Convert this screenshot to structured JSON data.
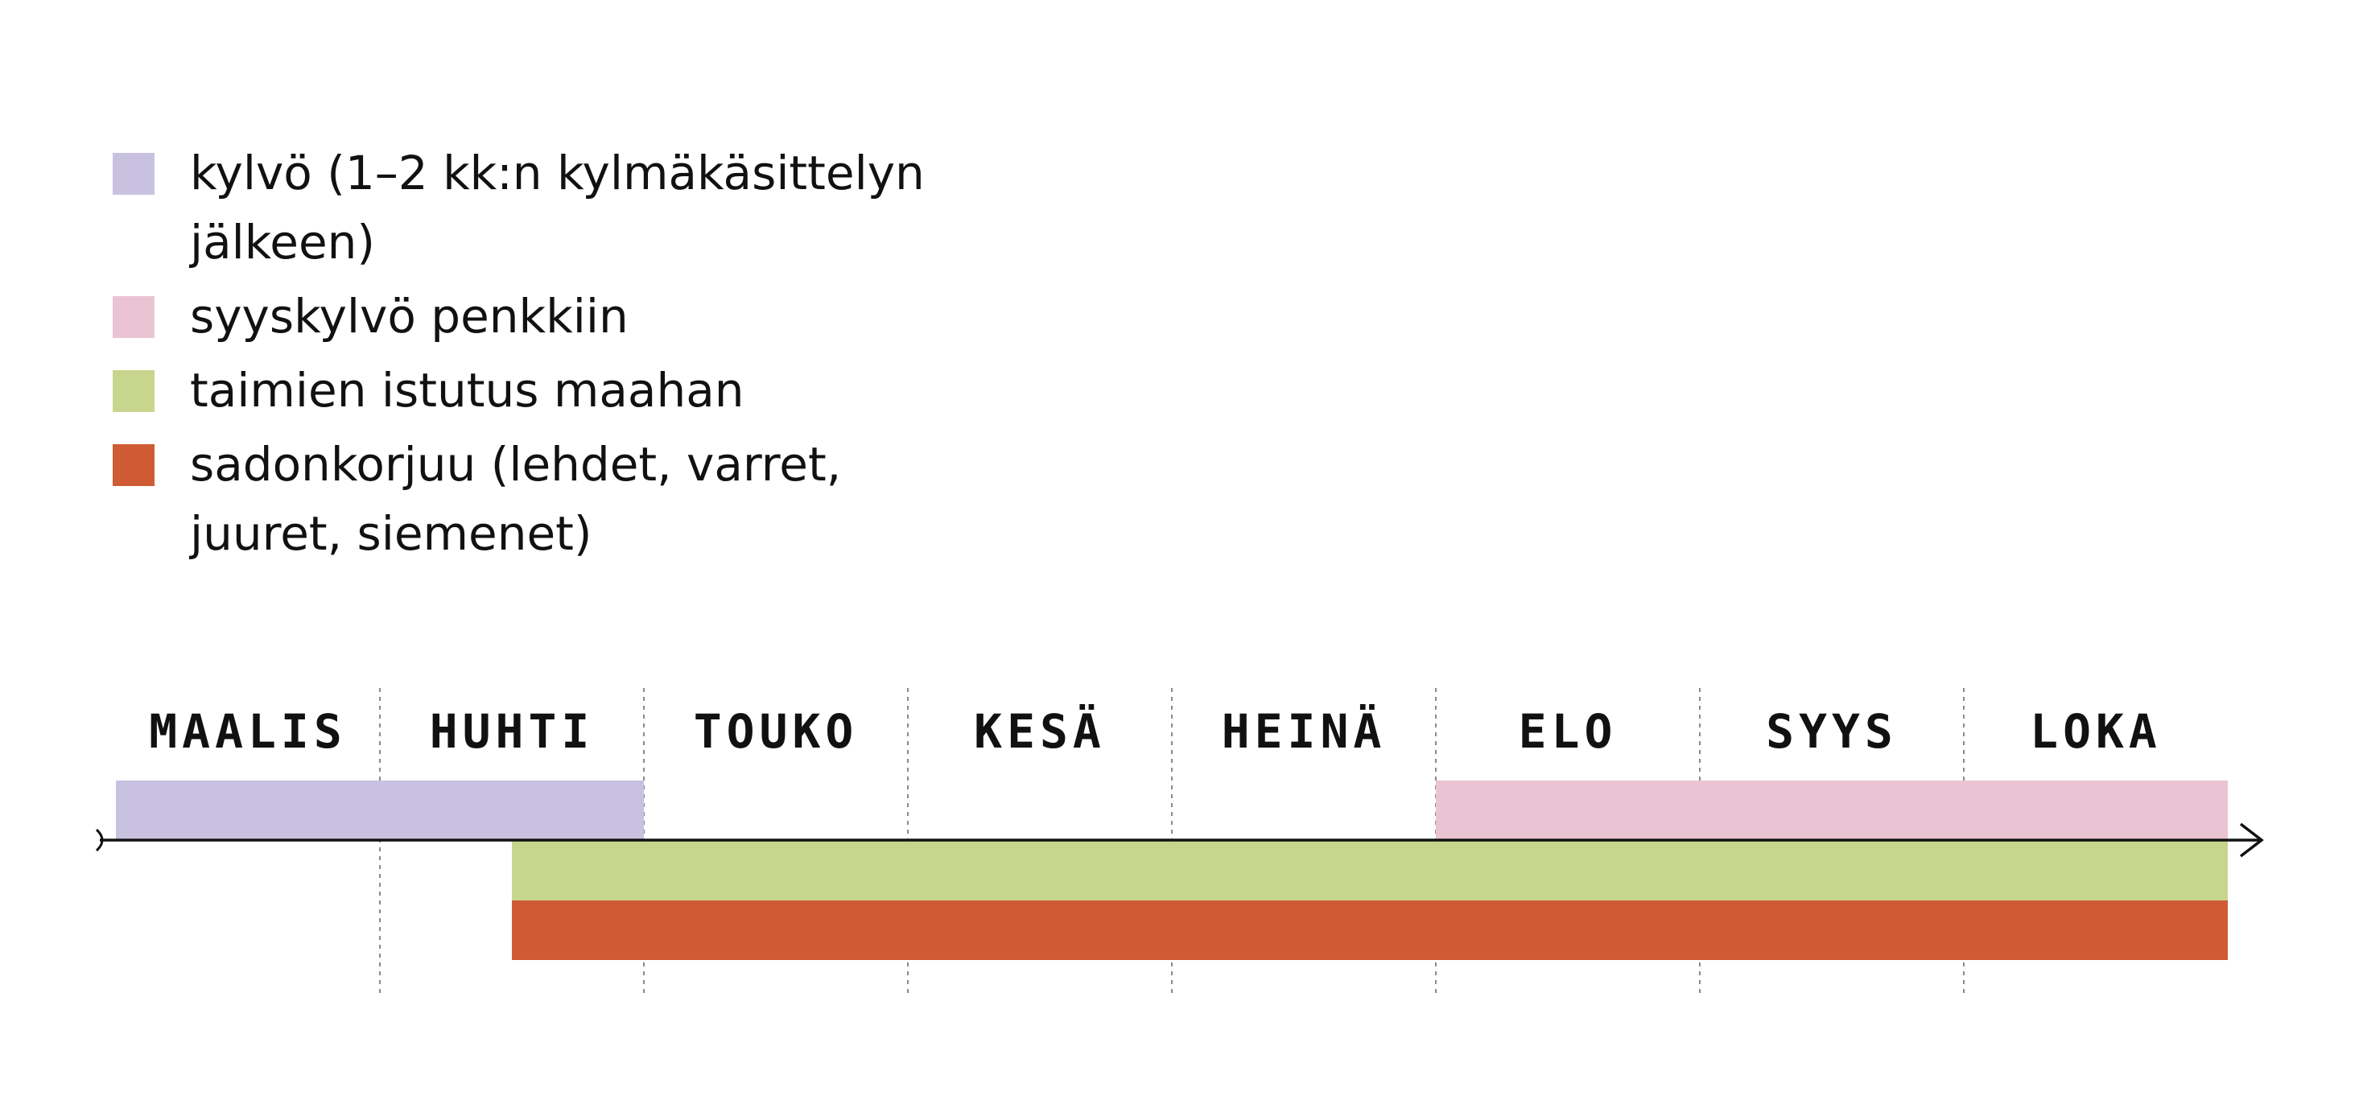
{
  "chart_data": {
    "type": "gantt",
    "months": [
      "MAALIS",
      "HUHTI",
      "TOUKO",
      "KESÄ",
      "HEINÄ",
      "ELO",
      "SYYS",
      "LOKA"
    ],
    "series": [
      {
        "name": "kylvö (1–2 kk:n kylmäkäsittelyn jälkeen)",
        "color": "#c8c1e0",
        "start": 0,
        "end": 2,
        "row": "above"
      },
      {
        "name": "syyskylvö penkkiin",
        "color": "#ebc4d3",
        "start": 5,
        "end": 8,
        "row": "above"
      },
      {
        "name": "taimien istutus maahan",
        "color": "#c8d68d",
        "start": 1.5,
        "end": 8,
        "row": "below1"
      },
      {
        "name": "sadonkorjuu (lehdet, varret, juuret, siemenet)",
        "color": "#cf5b34",
        "start": 1.5,
        "end": 8,
        "row": "below2"
      }
    ],
    "x_unit": "months from start of MAALIS",
    "xlim": [
      0,
      8
    ],
    "grid": "dotted vertical lines at month boundaries"
  },
  "legend": {
    "items": [
      {
        "label": "kylvö (1–2 kk:n kylmäkäsittelyn jälkeen)",
        "color": "#c8c1e0"
      },
      {
        "label": "syyskylvö penkkiin",
        "color": "#ebc4d3"
      },
      {
        "label": "taimien istutus maahan",
        "color": "#c8d68d"
      },
      {
        "label": "sadonkorjuu (lehdet, varret, juuret, siemenet)",
        "color": "#cf5b34"
      }
    ]
  }
}
